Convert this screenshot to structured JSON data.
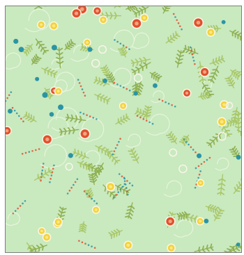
{
  "image": {
    "subject": "floral-pattern-paper",
    "colors": {
      "background": "#c9e9bf",
      "leaf": "#a9c86a",
      "leaf_dark": "#8fb152",
      "swirl": "#eaf6df",
      "red_flower": "#e0502f",
      "yellow_flower": "#f4d23b",
      "teal_dot": "#2a95a4",
      "white_ring": "#f7f5e8",
      "frame_border": "#7d7d7d"
    }
  }
}
